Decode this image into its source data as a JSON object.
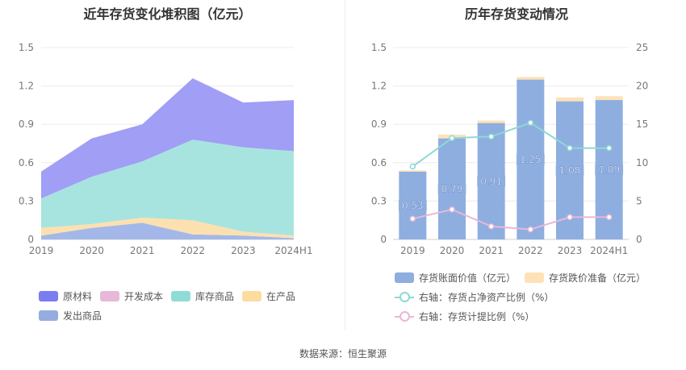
{
  "source": "数据来源：恒生聚源",
  "chart_data": [
    {
      "type": "area",
      "stacked": true,
      "title": "近年存货变化堆积图（亿元）",
      "categories": [
        "2019",
        "2020",
        "2021",
        "2022",
        "2023",
        "2024H1"
      ],
      "ylim": [
        0,
        1.5
      ],
      "yticks": [
        "0",
        "0.3",
        "0.6",
        "0.9",
        "1.2",
        "1.5"
      ],
      "series": [
        {
          "name": "发出商品",
          "color": "#a3b8e8",
          "values": [
            0.03,
            0.09,
            0.13,
            0.04,
            0.03,
            0.01
          ]
        },
        {
          "name": "在产品",
          "color": "#fde0b0",
          "values": [
            0.06,
            0.03,
            0.04,
            0.11,
            0.03,
            0.02
          ]
        },
        {
          "name": "库存商品",
          "color": "#a8e4df",
          "values": [
            0.23,
            0.37,
            0.44,
            0.63,
            0.66,
            0.66
          ]
        },
        {
          "name": "开发成本",
          "color": "#e8b8d8",
          "values": [
            0.0,
            0.0,
            0.0,
            0.0,
            0.0,
            0.0
          ]
        },
        {
          "name": "原材料",
          "color": "#a09ef5",
          "values": [
            0.21,
            0.3,
            0.29,
            0.48,
            0.35,
            0.4
          ]
        }
      ],
      "legend": [
        {
          "name": "原材料",
          "color": "#7b7cf0"
        },
        {
          "name": "开发成本",
          "color": "#e8b8d8"
        },
        {
          "name": "库存商品",
          "color": "#8fdcd6"
        },
        {
          "name": "在产品",
          "color": "#fddca0"
        },
        {
          "name": "发出商品",
          "color": "#94acdf"
        }
      ]
    },
    {
      "type": "bar",
      "title": "历年存货变动情况",
      "categories": [
        "2019",
        "2020",
        "2021",
        "2022",
        "2023",
        "2024H1"
      ],
      "ylim": [
        0,
        1.5
      ],
      "yticks": [
        "0",
        "0.3",
        "0.6",
        "0.9",
        "1.2",
        "1.5"
      ],
      "y2lim": [
        0,
        25
      ],
      "y2ticks": [
        "0",
        "5",
        "10",
        "15",
        "20",
        "25"
      ],
      "series": [
        {
          "name": "存货账面价值（亿元）",
          "color": "#8eaee0",
          "values": [
            0.53,
            0.79,
            0.91,
            1.25,
            1.08,
            1.09
          ],
          "labels": [
            "0.53",
            "0.79",
            "0.91",
            "1.25",
            "1.08",
            "1.09"
          ]
        },
        {
          "name": "存货跌价准备（亿元）",
          "color": "#fde2b8",
          "values": [
            0.01,
            0.03,
            0.02,
            0.02,
            0.03,
            0.03
          ]
        },
        {
          "name": "右轴：存货占净资产比例（%）",
          "color": "#8dd8d6",
          "axis": "right",
          "values": [
            9.5,
            13.2,
            13.4,
            15.2,
            11.9,
            11.9
          ]
        },
        {
          "name": "右轴：存货计提比例（%）",
          "color": "#e8b8d8",
          "axis": "right",
          "values": [
            2.7,
            3.9,
            1.7,
            1.3,
            2.9,
            2.9
          ]
        }
      ]
    }
  ]
}
